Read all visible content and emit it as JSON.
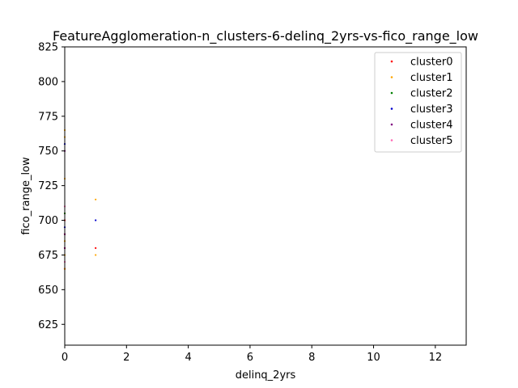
{
  "chart_data": {
    "type": "scatter",
    "title": "FeatureAgglomeration-n_clusters-6-delinq_2yrs-vs-fico_range_low",
    "xlabel": "delinq_2yrs",
    "ylabel": "fico_range_low",
    "xlim": [
      0,
      13
    ],
    "ylim": [
      610,
      825
    ],
    "xticks": [
      0,
      2,
      4,
      6,
      8,
      10,
      12
    ],
    "yticks": [
      625,
      650,
      675,
      700,
      725,
      750,
      775,
      800,
      825
    ],
    "legend_position": "top-right",
    "series": [
      {
        "name": "cluster0",
        "color": "#ff0000",
        "points": [
          [
            0,
            665
          ],
          [
            0,
            680
          ],
          [
            0,
            690
          ],
          [
            0,
            700
          ],
          [
            1,
            680
          ]
        ]
      },
      {
        "name": "cluster1",
        "color": "#ffa500",
        "points": [
          [
            0,
            665
          ],
          [
            0,
            675
          ],
          [
            0,
            685
          ],
          [
            0,
            705
          ],
          [
            0,
            730
          ],
          [
            0,
            760
          ],
          [
            0,
            765
          ],
          [
            1,
            675
          ],
          [
            1,
            715
          ]
        ]
      },
      {
        "name": "cluster2",
        "color": "#008000",
        "points": [
          [
            0,
            705
          ]
        ]
      },
      {
        "name": "cluster3",
        "color": "#0000cd",
        "points": [
          [
            0,
            695
          ],
          [
            0,
            755
          ],
          [
            1,
            700
          ]
        ]
      },
      {
        "name": "cluster4",
        "color": "#800080",
        "points": [
          [
            0,
            680
          ],
          [
            0,
            690
          ],
          [
            0,
            750
          ]
        ]
      },
      {
        "name": "cluster5",
        "color": "#ff69b4",
        "points": [
          [
            0,
            670
          ],
          [
            0,
            710
          ]
        ]
      }
    ]
  }
}
